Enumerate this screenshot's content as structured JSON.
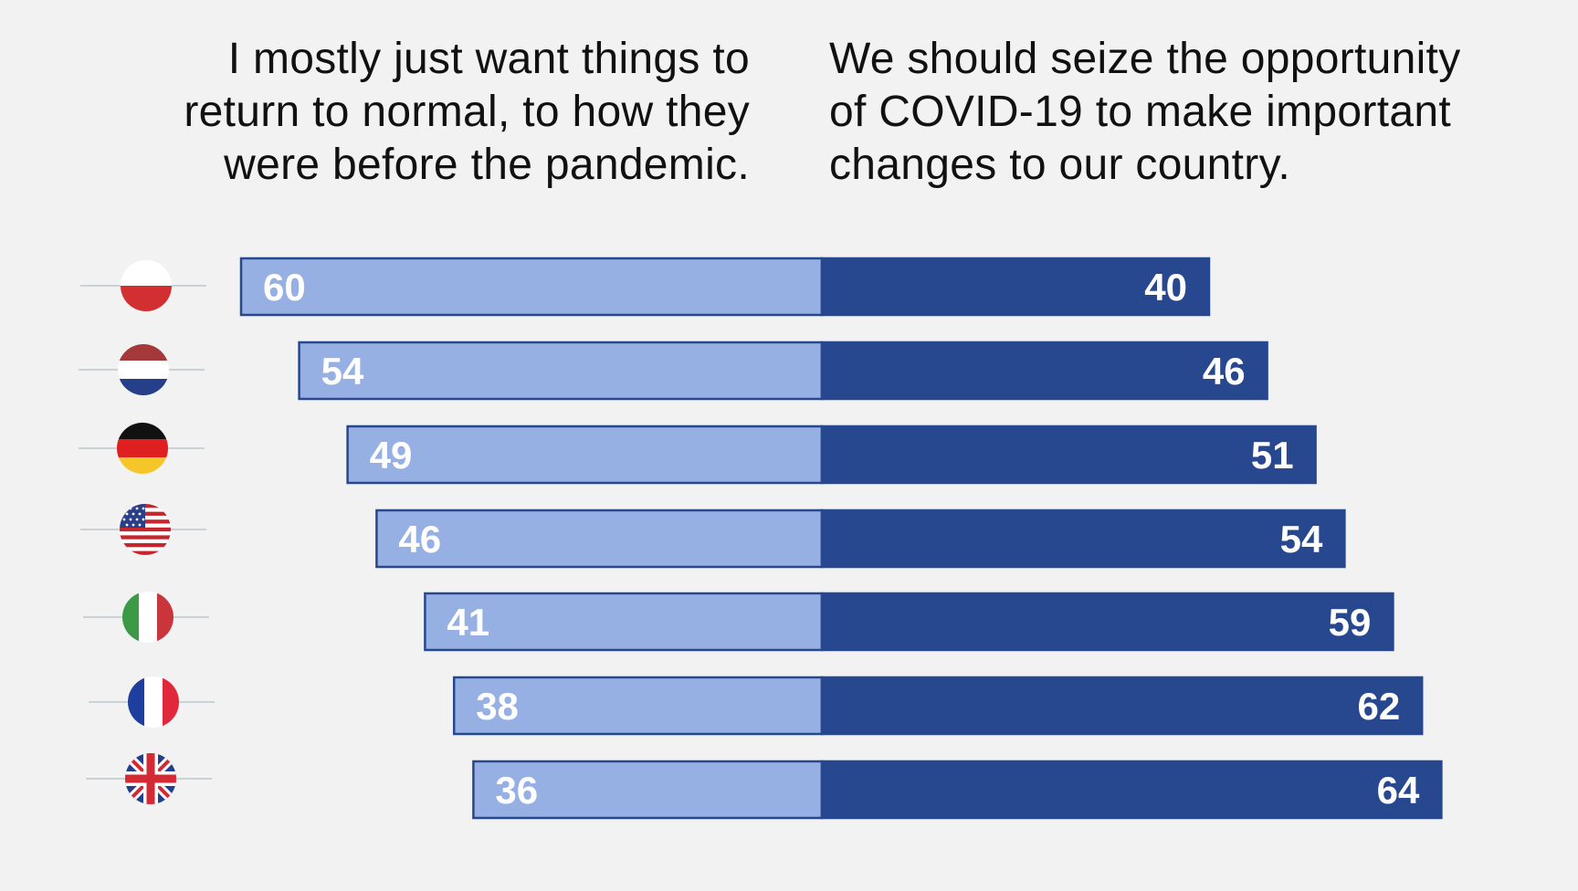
{
  "headings": {
    "left": "I mostly just want things to return to normal, to how they were before the pandemic.",
    "right": "We should seize the opportunity of COVID-19 to make important changes to our country."
  },
  "colors": {
    "left_bar": "#96b0e3",
    "right_bar": "#27478f",
    "bar_border": "#27478f",
    "background": "#f2f2f2"
  },
  "chart_data": {
    "type": "bar",
    "orientation": "horizontal-diverging",
    "categories": [
      "Poland",
      "Netherlands",
      "Germany",
      "United States",
      "Italy",
      "France",
      "United Kingdom"
    ],
    "category_icons": [
      "poland-flag-icon",
      "netherlands-flag-icon",
      "germany-flag-icon",
      "usa-flag-icon",
      "italy-flag-icon",
      "france-flag-icon",
      "uk-flag-icon"
    ],
    "series": [
      {
        "values": [
          60,
          54,
          49,
          46,
          41,
          38,
          36
        ]
      },
      {
        "values": [
          40,
          46,
          51,
          54,
          59,
          62,
          64
        ]
      }
    ],
    "xlim": [
      0,
      100
    ],
    "grid": false,
    "legend": "none"
  }
}
